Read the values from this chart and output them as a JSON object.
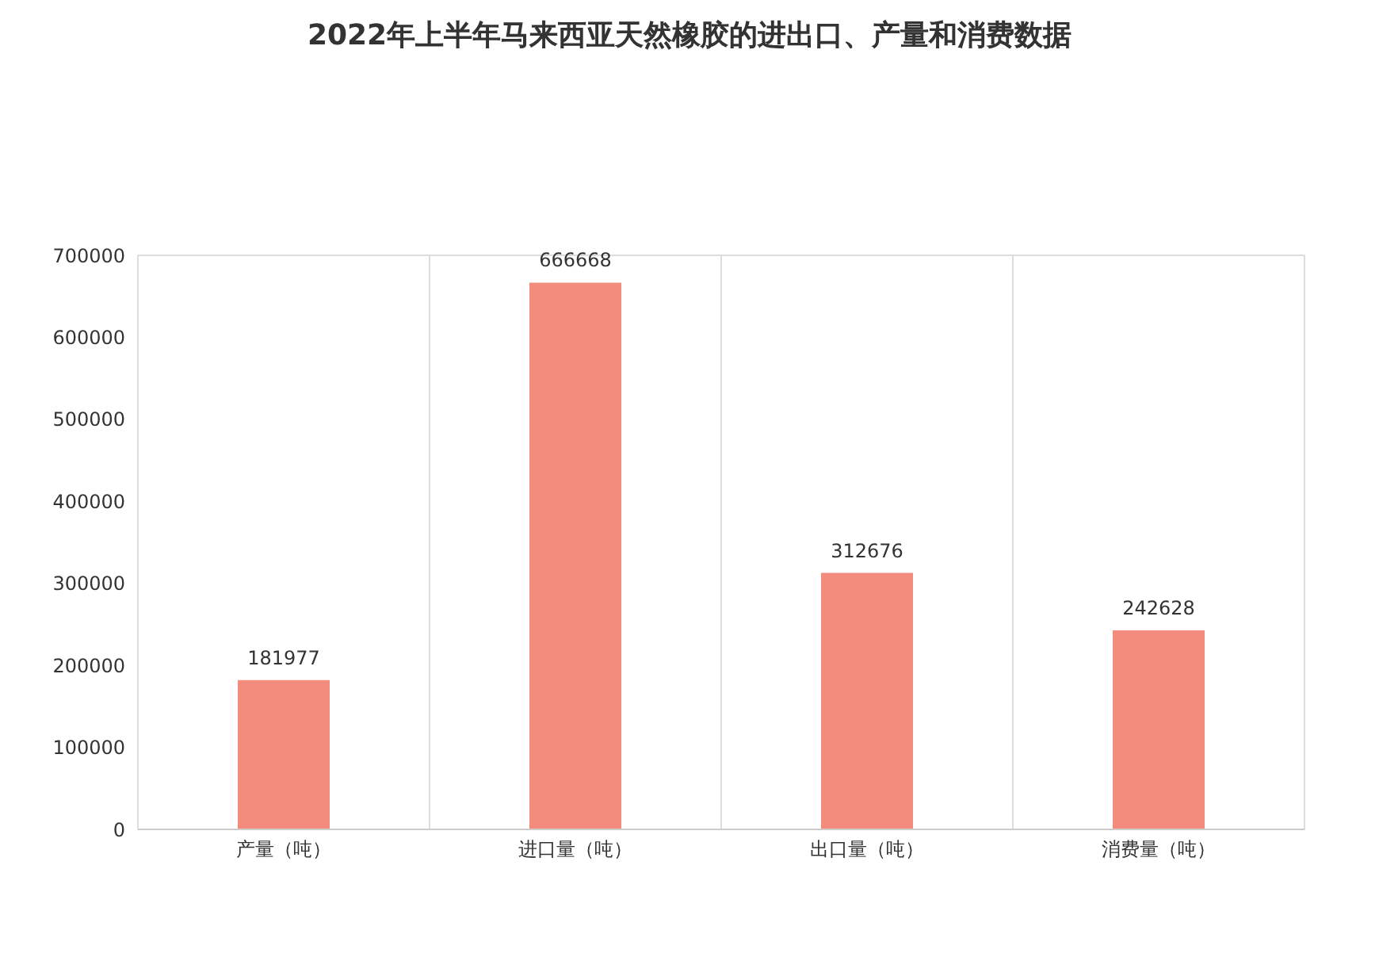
{
  "chart_data": {
    "type": "bar",
    "title": "2022年上半年马来西亚天然橡胶的进出口、产量和消费数据",
    "categories": [
      "产量（吨）",
      "进口量（吨）",
      "出口量（吨）",
      "消费量（吨）"
    ],
    "values": [
      181977,
      666668,
      312676,
      242628
    ],
    "color": "#f48c7e",
    "ylim": [
      0,
      700000
    ],
    "yticks": [
      0,
      100000,
      200000,
      300000,
      400000,
      500000,
      600000,
      700000
    ],
    "grid": "x",
    "data_labels": true
  }
}
